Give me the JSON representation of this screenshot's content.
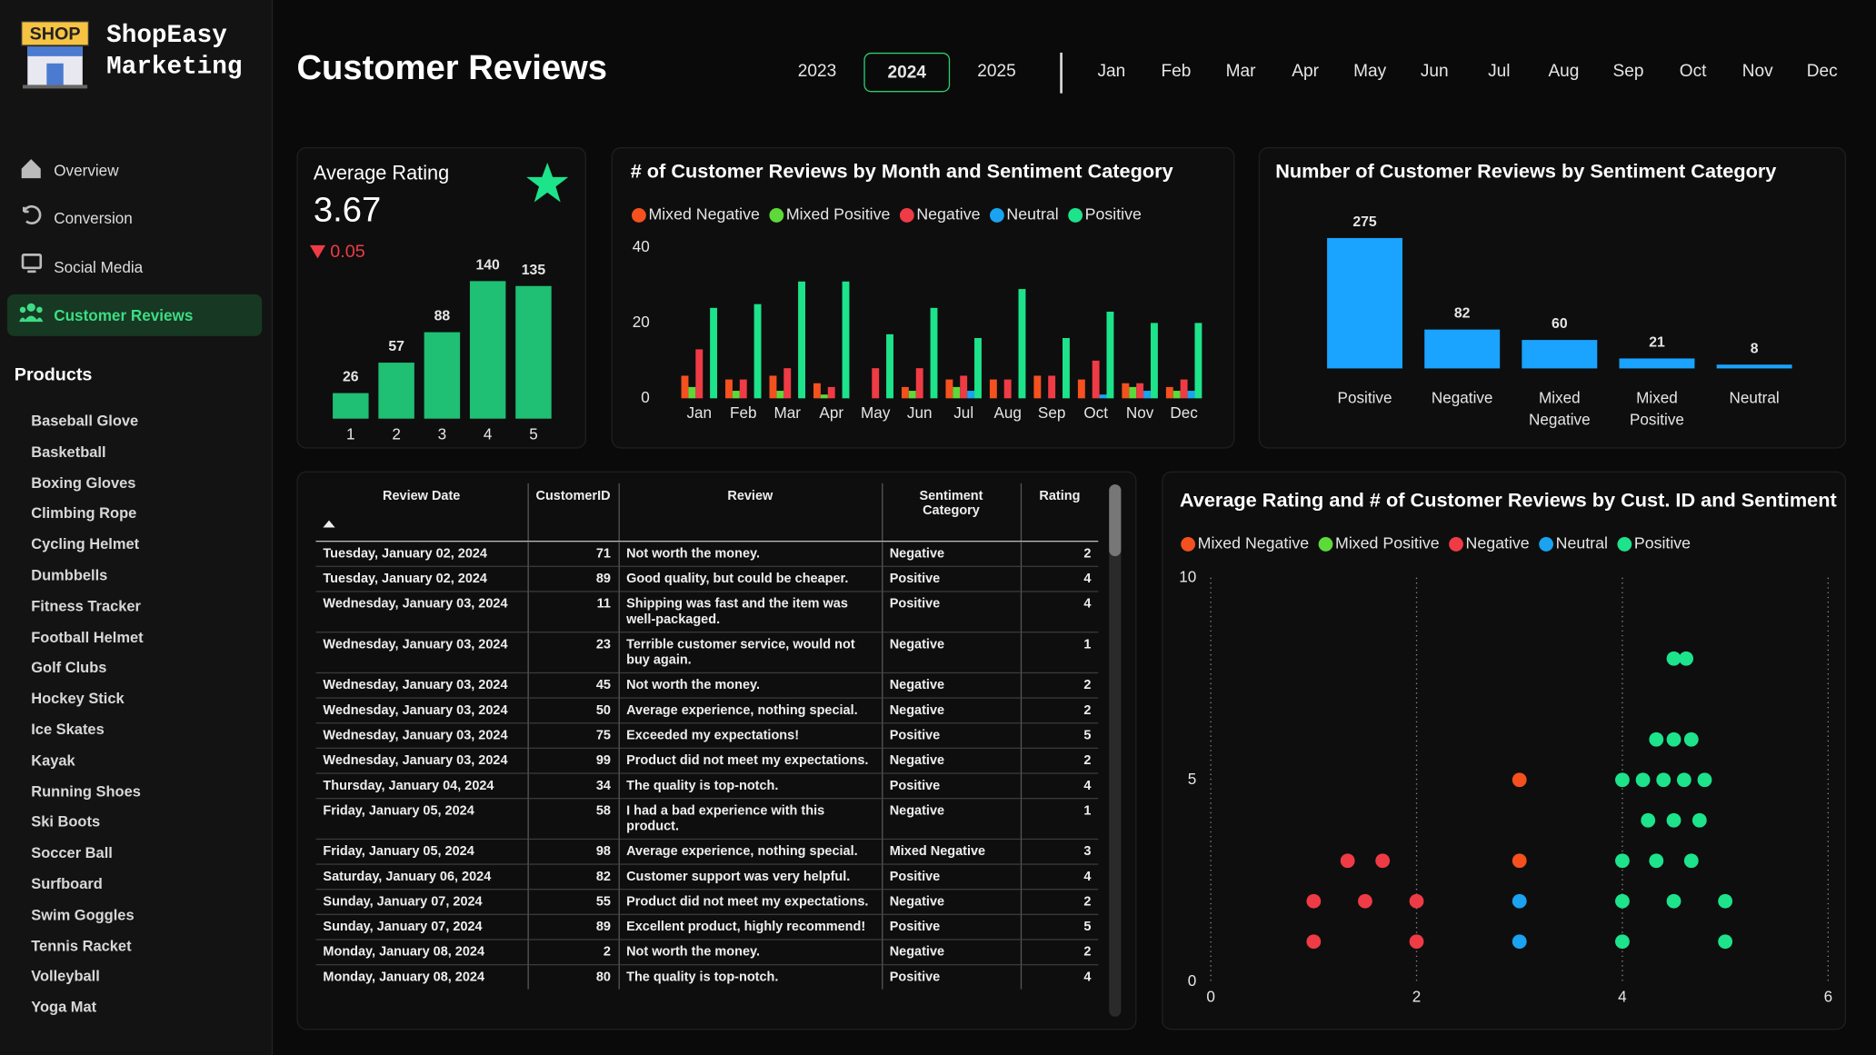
{
  "sidebar": {
    "logo": "SHOP",
    "brand": [
      "ShopEasy",
      "Marketing"
    ],
    "nav": [
      "Overview",
      "Conversion",
      "Social Media",
      "Customer Reviews"
    ],
    "products_heading": "Products",
    "products": [
      "Baseball Glove",
      "Basketball",
      "Boxing Gloves",
      "Climbing Rope",
      "Cycling Helmet",
      "Dumbbells",
      "Fitness Tracker",
      "Football Helmet",
      "Golf Clubs",
      "Hockey Stick",
      "Ice Skates",
      "Kayak",
      "Running Shoes",
      "Ski Boots",
      "Soccer Ball",
      "Surfboard",
      "Swim Goggles",
      "Tennis Racket",
      "Volleyball",
      "Yoga Mat"
    ]
  },
  "header": {
    "title": "Customer Reviews",
    "years": [
      "2023",
      "2024",
      "2025"
    ],
    "months": [
      "Jan",
      "Feb",
      "Mar",
      "Apr",
      "May",
      "Jun",
      "Jul",
      "Aug",
      "Sep",
      "Oct",
      "Nov",
      "Dec"
    ]
  },
  "kpi": {
    "title": "Average Rating",
    "value": "3.67",
    "change": "0.05"
  },
  "chart_data": [
    {
      "type": "bar",
      "categories": [
        "1",
        "2",
        "3",
        "4",
        "5"
      ],
      "values": [
        26,
        57,
        88,
        140,
        135
      ],
      "color": "#1fbf74"
    },
    {
      "type": "bar",
      "title": "# of Customer Reviews by Month and Sentiment Category",
      "categories": [
        "Jan",
        "Feb",
        "Mar",
        "Apr",
        "May",
        "Jun",
        "Jul",
        "Aug",
        "Sep",
        "Oct",
        "Nov",
        "Dec"
      ],
      "ylim": [
        0,
        40
      ],
      "yticks": [
        0,
        20,
        40
      ],
      "series": [
        {
          "name": "Mixed Negative",
          "color": "#f4511e",
          "values": [
            6,
            5,
            6,
            4,
            0,
            3,
            5,
            5,
            6,
            5,
            4,
            3
          ]
        },
        {
          "name": "Mixed Positive",
          "color": "#5ed93a",
          "values": [
            3,
            2,
            2,
            1,
            0,
            2,
            3,
            0,
            0,
            0,
            3,
            2
          ]
        },
        {
          "name": "Negative",
          "color": "#ef3b45",
          "values": [
            13,
            5,
            8,
            3,
            8,
            8,
            6,
            5,
            6,
            10,
            4,
            5
          ]
        },
        {
          "name": "Neutral",
          "color": "#1aa3f0",
          "values": [
            0,
            0,
            0,
            0,
            0,
            0,
            2,
            0,
            0,
            1,
            2,
            2
          ]
        },
        {
          "name": "Positive",
          "color": "#1de38b",
          "values": [
            24,
            25,
            31,
            31,
            17,
            24,
            16,
            29,
            16,
            23,
            20,
            20
          ]
        }
      ]
    },
    {
      "type": "bar",
      "title": "Number of Customer Reviews by Sentiment Category",
      "categories": [
        "Positive",
        "Negative",
        "Mixed Negative",
        "Mixed Positive",
        "Neutral"
      ],
      "values": [
        275,
        82,
        60,
        21,
        8
      ],
      "color": "#1aa3ff"
    },
    {
      "type": "scatter",
      "title": "Average Rating and # of Customer Reviews by Cust. ID and Sentiment",
      "xlim": [
        0,
        6
      ],
      "xticks": [
        0,
        2,
        4,
        6
      ],
      "ylim": [
        0,
        10
      ],
      "yticks": [
        0,
        5,
        10
      ],
      "grid": true,
      "series": [
        {
          "name": "Mixed Negative",
          "color": "#f4511e",
          "x": [
            3,
            3
          ],
          "values": [
            5,
            3
          ]
        },
        {
          "name": "Mixed Positive",
          "color": "#5ed93a",
          "x": [],
          "values": []
        },
        {
          "name": "Negative",
          "color": "#ef3b45",
          "x": [
            1,
            2,
            1,
            1.5,
            2,
            1.33,
            1.67
          ],
          "values": [
            1,
            1,
            2,
            2,
            2,
            3,
            3
          ]
        },
        {
          "name": "Neutral",
          "color": "#1aa3f0",
          "x": [
            3,
            3
          ],
          "values": [
            2,
            1
          ]
        },
        {
          "name": "Positive",
          "color": "#1de38b",
          "x": [
            4,
            5,
            4,
            4.5,
            5,
            4,
            4.33,
            4.67,
            4.25,
            4.5,
            4.75,
            4,
            4.2,
            4.4,
            4.6,
            4.8,
            4.33,
            4.5,
            4.67,
            4.5,
            4.62
          ],
          "values": [
            1,
            1,
            2,
            2,
            2,
            3,
            3,
            3,
            4,
            4,
            4,
            5,
            5,
            5,
            5,
            5,
            6,
            6,
            6,
            8,
            8
          ]
        }
      ]
    }
  ],
  "table": {
    "columns": [
      "Review Date",
      "CustomerID",
      "Review",
      "Sentiment Category",
      "Rating"
    ],
    "rows": [
      [
        "Tuesday, January 02, 2024",
        71,
        "Not worth the money.",
        "Negative",
        2
      ],
      [
        "Tuesday, January 02, 2024",
        89,
        "Good quality, but could be cheaper.",
        "Positive",
        4
      ],
      [
        "Wednesday, January 03, 2024",
        11,
        "Shipping was fast and the item was well-packaged.",
        "Positive",
        4
      ],
      [
        "Wednesday, January 03, 2024",
        23,
        "Terrible customer service, would not buy again.",
        "Negative",
        1
      ],
      [
        "Wednesday, January 03, 2024",
        45,
        "Not worth the money.",
        "Negative",
        2
      ],
      [
        "Wednesday, January 03, 2024",
        50,
        "Average experience, nothing special.",
        "Negative",
        2
      ],
      [
        "Wednesday, January 03, 2024",
        75,
        "Exceeded my expectations!",
        "Positive",
        5
      ],
      [
        "Wednesday, January 03, 2024",
        99,
        "Product did not meet my expectations.",
        "Negative",
        2
      ],
      [
        "Thursday, January 04, 2024",
        34,
        "The quality is top-notch.",
        "Positive",
        4
      ],
      [
        "Friday, January 05, 2024",
        58,
        "I had a bad experience with this product.",
        "Negative",
        1
      ],
      [
        "Friday, January 05, 2024",
        98,
        "Average experience, nothing special.",
        "Mixed Negative",
        3
      ],
      [
        "Saturday, January 06, 2024",
        82,
        "Customer support was very helpful.",
        "Positive",
        4
      ],
      [
        "Sunday, January 07, 2024",
        55,
        "Product did not meet my expectations.",
        "Negative",
        2
      ],
      [
        "Sunday, January 07, 2024",
        89,
        "Excellent product, highly recommend!",
        "Positive",
        5
      ],
      [
        "Monday, January 08, 2024",
        2,
        "Not worth the money.",
        "Negative",
        2
      ],
      [
        "Monday, January 08, 2024",
        80,
        "The quality is top-notch.",
        "Positive",
        4
      ]
    ]
  }
}
